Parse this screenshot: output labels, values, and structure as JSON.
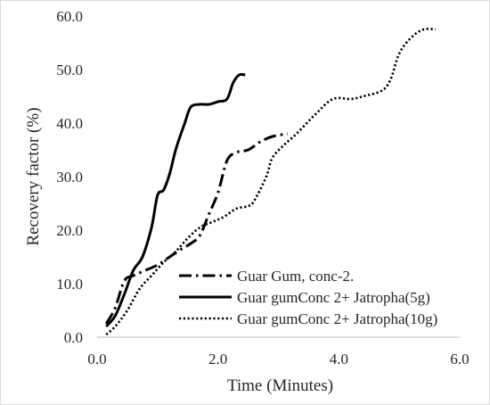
{
  "chart_data": {
    "type": "line",
    "title": "",
    "xlabel": "Time (Minutes)",
    "ylabel": "Recovery factor (%)",
    "xlim": [
      0,
      6
    ],
    "ylim": [
      0,
      60
    ],
    "x_ticks": [
      "0.0",
      "2.0",
      "4.0",
      "6.0"
    ],
    "y_ticks": [
      "0.0",
      "10.0",
      "20.0",
      "30.0",
      "40.0",
      "50.0",
      "60.0"
    ],
    "grid": false,
    "legend_position": "bottom-right",
    "line_color": "#000000",
    "series": [
      {
        "name": "Guar Gum, conc-2.",
        "style": "dash-dot",
        "points": [
          [
            0.15,
            2.5
          ],
          [
            0.3,
            5.5
          ],
          [
            0.45,
            10.5
          ],
          [
            0.6,
            11.5
          ],
          [
            0.8,
            12.5
          ],
          [
            1.0,
            13.5
          ],
          [
            1.2,
            15.0
          ],
          [
            1.4,
            16.5
          ],
          [
            1.55,
            17.5
          ],
          [
            1.7,
            19.0
          ],
          [
            1.85,
            23.0
          ],
          [
            2.0,
            27.0
          ],
          [
            2.15,
            33.0
          ],
          [
            2.3,
            34.5
          ],
          [
            2.5,
            35.0
          ],
          [
            2.7,
            36.5
          ],
          [
            2.9,
            37.5
          ],
          [
            3.15,
            38.0
          ]
        ]
      },
      {
        "name": "Guar gumConc 2+  Jatropha(5g)",
        "style": "solid",
        "points": [
          [
            0.15,
            2.0
          ],
          [
            0.3,
            4.0
          ],
          [
            0.45,
            8.0
          ],
          [
            0.6,
            12.5
          ],
          [
            0.75,
            15.0
          ],
          [
            0.9,
            20.5
          ],
          [
            1.0,
            26.5
          ],
          [
            1.1,
            27.5
          ],
          [
            1.2,
            30.5
          ],
          [
            1.3,
            35.0
          ],
          [
            1.45,
            40.0
          ],
          [
            1.55,
            43.0
          ],
          [
            1.7,
            43.5
          ],
          [
            1.85,
            43.5
          ],
          [
            2.0,
            44.0
          ],
          [
            2.15,
            44.5
          ],
          [
            2.25,
            47.5
          ],
          [
            2.35,
            49.0
          ],
          [
            2.45,
            49.0
          ]
        ]
      },
      {
        "name": "Guar gumConc 2+  Jatropha(10g)",
        "style": "dotted",
        "points": [
          [
            0.15,
            0.5
          ],
          [
            0.3,
            2.0
          ],
          [
            0.5,
            5.0
          ],
          [
            0.7,
            9.0
          ],
          [
            0.9,
            11.5
          ],
          [
            1.1,
            14.0
          ],
          [
            1.3,
            16.0
          ],
          [
            1.5,
            18.5
          ],
          [
            1.7,
            20.5
          ],
          [
            1.9,
            21.5
          ],
          [
            2.1,
            22.5
          ],
          [
            2.3,
            24.0
          ],
          [
            2.5,
            24.5
          ],
          [
            2.6,
            25.5
          ],
          [
            2.8,
            30.0
          ],
          [
            2.9,
            33.5
          ],
          [
            3.1,
            36.0
          ],
          [
            3.3,
            38.0
          ],
          [
            3.6,
            41.5
          ],
          [
            3.9,
            44.5
          ],
          [
            4.2,
            44.5
          ],
          [
            4.4,
            45.0
          ],
          [
            4.7,
            46.0
          ],
          [
            4.85,
            48.0
          ],
          [
            5.0,
            53.0
          ],
          [
            5.2,
            56.0
          ],
          [
            5.4,
            57.5
          ],
          [
            5.6,
            57.5
          ]
        ]
      }
    ]
  }
}
